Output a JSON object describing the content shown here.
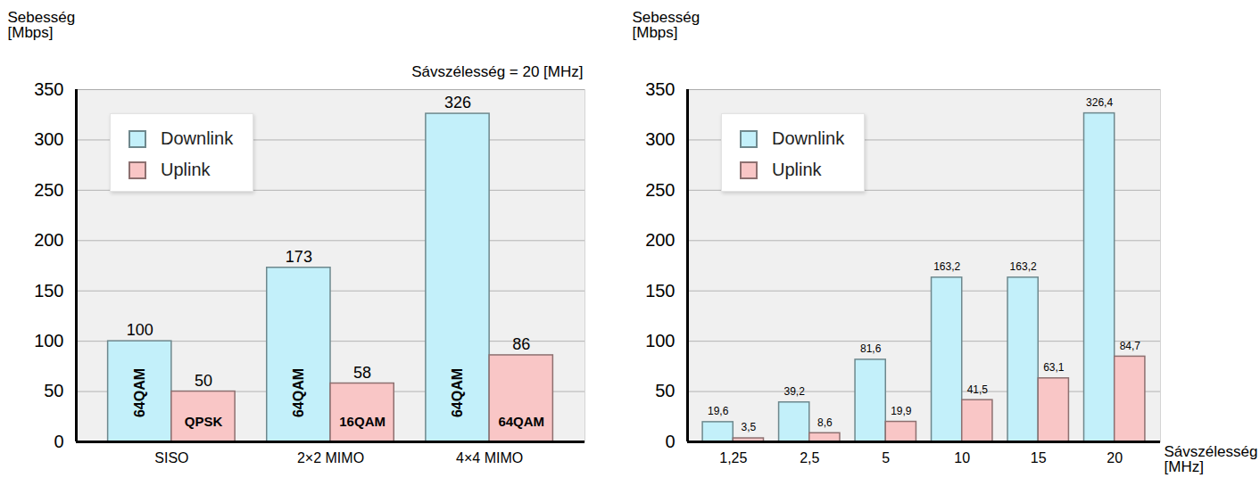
{
  "chart_data": [
    {
      "type": "bar",
      "y_label": "Sebesség [Mbps]",
      "annotation": "Sávszélesség = 20 [MHz]",
      "categories": [
        "SISO",
        "2×2 MIMO",
        "4×4 MIMO"
      ],
      "series": [
        {
          "name": "Downlink",
          "color": "#c3f0fa",
          "values": [
            100,
            173,
            326
          ],
          "modulations": [
            "64QAM",
            "64QAM",
            "64QAM"
          ]
        },
        {
          "name": "Uplink",
          "color": "#f9c6c6",
          "values": [
            50,
            58,
            86
          ],
          "modulations": [
            "QPSK",
            "16QAM",
            "64QAM"
          ]
        }
      ],
      "ylim": [
        0,
        350
      ],
      "yticks": [
        0,
        50,
        100,
        150,
        200,
        250,
        300,
        350
      ],
      "grid": true,
      "legend": "top-left",
      "data_labels": true
    },
    {
      "type": "bar",
      "y_label": "Sebesség [Mbps]",
      "x_label": "Sávszélesség [MHz]",
      "categories": [
        "1,25",
        "2,5",
        "5",
        "10",
        "15",
        "20"
      ],
      "series": [
        {
          "name": "Downlink",
          "color": "#c3f0fa",
          "values": [
            19.6,
            39.2,
            81.6,
            163.2,
            163.2,
            326.4
          ],
          "value_labels": [
            "19,6",
            "39,2",
            "81,6",
            "163,2",
            "163,2",
            "326,4"
          ]
        },
        {
          "name": "Uplink",
          "color": "#f9c6c6",
          "values": [
            3.5,
            8.6,
            19.9,
            41.5,
            63.1,
            84.7
          ],
          "value_labels": [
            "3,5",
            "8,6",
            "19,9",
            "41,5",
            "63,1",
            "84,7"
          ]
        }
      ],
      "ylim": [
        0,
        350
      ],
      "yticks": [
        0,
        50,
        100,
        150,
        200,
        250,
        300,
        350
      ],
      "grid": true,
      "legend": "top-left",
      "data_labels": true
    }
  ]
}
